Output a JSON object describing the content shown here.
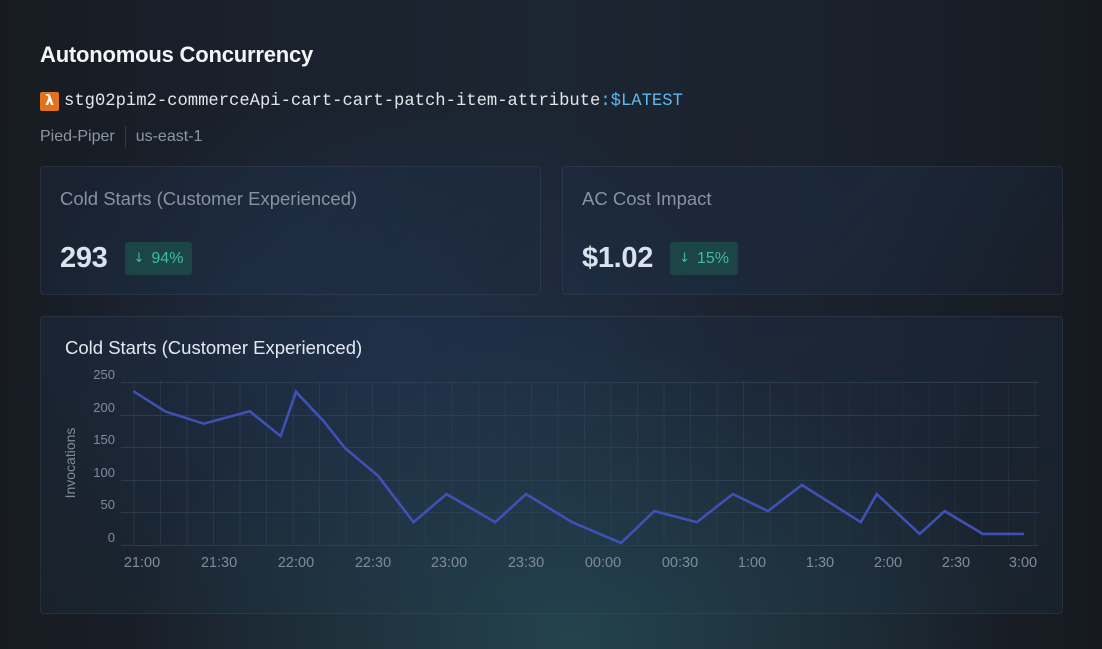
{
  "page": {
    "title": "Autonomous Concurrency"
  },
  "function": {
    "icon": "aws-lambda-icon",
    "icon_glyph": "λ",
    "name": "stg02pim2-commerceApi-cart-cart-patch-item-attribute",
    "separator": ":",
    "version": "$LATEST"
  },
  "meta": {
    "account": "Pied-Piper",
    "region": "us-east-1"
  },
  "stats": [
    {
      "label": "Cold Starts (Customer Experienced)",
      "value": "293",
      "change_icon": "arrow-down-icon",
      "change_glyph": "↓",
      "change": "94%",
      "change_direction": "down"
    },
    {
      "label": "AC Cost Impact",
      "value": "$1.02",
      "change_icon": "arrow-down-icon",
      "change_glyph": "↓",
      "change": "15%",
      "change_direction": "down"
    }
  ],
  "colors": {
    "lambda_orange": "#e2731c",
    "version_blue": "#5cb8ef",
    "badge_bg": "#1c4547",
    "badge_text": "#40bc9f",
    "series_line": "#3f51b5",
    "grid": "#2f4457"
  },
  "chart_data": {
    "type": "line",
    "title": "Cold Starts (Customer Experienced)",
    "xlabel": "",
    "ylabel": "Invocations",
    "ylim": [
      0,
      250
    ],
    "y_ticks": [
      0,
      50,
      100,
      150,
      200,
      250
    ],
    "grid": true,
    "legend": "none",
    "x_ticks": [
      {
        "label": "21:00",
        "minutes": 0
      },
      {
        "label": "21:30",
        "minutes": 30
      },
      {
        "label": "22:00",
        "minutes": 60
      },
      {
        "label": "22:30",
        "minutes": 90
      },
      {
        "label": "23:00",
        "minutes": 120
      },
      {
        "label": "23:30",
        "minutes": 150
      },
      {
        "label": "00:00",
        "minutes": 180
      },
      {
        "label": "00:30",
        "minutes": 210
      },
      {
        "label": "1:00",
        "minutes": 240
      },
      {
        "label": "1:30",
        "minutes": 270
      },
      {
        "label": "2:00",
        "minutes": 300
      },
      {
        "label": "2:30",
        "minutes": 330
      },
      {
        "label": "3:00",
        "minutes": 360
      }
    ],
    "series": [
      {
        "name": "Cold Starts",
        "x_unit": "minutes after 21:00",
        "points": [
          [
            -3,
            235
          ],
          [
            9,
            205
          ],
          [
            24,
            186
          ],
          [
            42,
            205
          ],
          [
            54,
            167
          ],
          [
            60,
            235
          ],
          [
            71,
            189
          ],
          [
            79,
            149
          ],
          [
            92,
            106
          ],
          [
            106,
            35
          ],
          [
            119,
            78
          ],
          [
            138,
            35
          ],
          [
            150,
            78
          ],
          [
            168,
            35
          ],
          [
            187,
            3
          ],
          [
            200,
            52
          ],
          [
            217,
            35
          ],
          [
            232,
            78
          ],
          [
            247,
            52
          ],
          [
            262,
            92
          ],
          [
            288,
            35
          ],
          [
            295,
            78
          ],
          [
            314,
            17
          ],
          [
            325,
            52
          ],
          [
            342,
            17
          ],
          [
            360,
            17
          ]
        ]
      }
    ]
  }
}
